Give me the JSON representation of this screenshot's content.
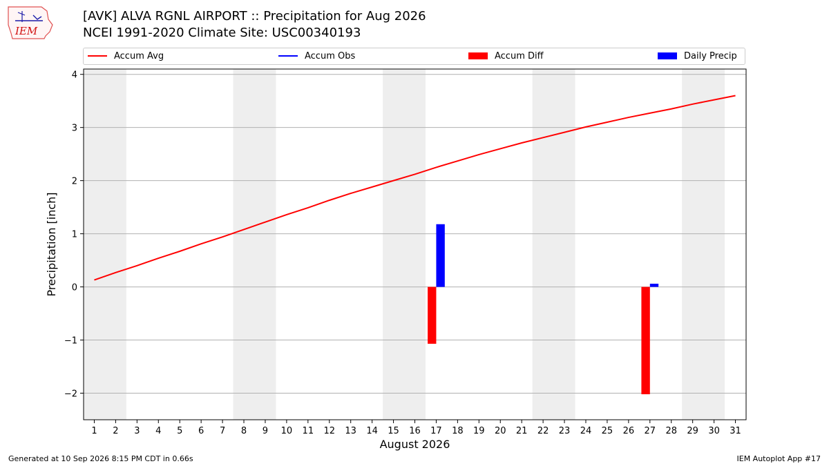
{
  "header": {
    "logo_text": "IEM",
    "title_line1": "[AVK] ALVA RGNL AIRPORT :: Precipitation for Aug 2026",
    "title_line2": "NCEI 1991-2020 Climate Site: USC00340193"
  },
  "legend": {
    "items": [
      {
        "label": "Accum Avg",
        "color": "#ff0000",
        "kind": "line"
      },
      {
        "label": "Accum Obs",
        "color": "#0000ff",
        "kind": "line"
      },
      {
        "label": "Accum Diff",
        "color": "#ff0000",
        "kind": "box"
      },
      {
        "label": "Daily Precip",
        "color": "#0000ff",
        "kind": "box"
      }
    ]
  },
  "footer": {
    "left": "Generated at 10 Sep 2026 8:15 PM CDT in 0.66s",
    "right": "IEM Autoplot App #17"
  },
  "chart_data": {
    "type": "bar",
    "xlabel": "August 2026",
    "ylabel": "Precipitation [inch]",
    "x_ticks": [
      1,
      2,
      3,
      4,
      5,
      6,
      7,
      8,
      9,
      10,
      11,
      12,
      13,
      14,
      15,
      16,
      17,
      18,
      19,
      20,
      21,
      22,
      23,
      24,
      25,
      26,
      27,
      28,
      29,
      30,
      31
    ],
    "xlim": [
      0.5,
      31.5
    ],
    "ylim": [
      -2.5,
      4.1
    ],
    "y_ticks": [
      -2,
      -1,
      0,
      1,
      2,
      3,
      4
    ],
    "y_tick_labels": [
      "−2",
      "−1",
      "0",
      "1",
      "2",
      "3",
      "4"
    ],
    "grid": "horizontal",
    "weekend_shading": [
      [
        0.5,
        2.5
      ],
      [
        7.5,
        9.5
      ],
      [
        14.5,
        16.5
      ],
      [
        21.5,
        23.5
      ],
      [
        28.5,
        30.5
      ]
    ],
    "series": [
      {
        "name": "Accum Avg",
        "type": "line",
        "color": "#ff0000",
        "x": [
          1,
          2,
          3,
          4,
          5,
          6,
          7,
          8,
          9,
          10,
          11,
          12,
          13,
          14,
          15,
          16,
          17,
          18,
          19,
          20,
          21,
          22,
          23,
          24,
          25,
          26,
          27,
          28,
          29,
          30,
          31
        ],
        "values": [
          0.13,
          0.27,
          0.4,
          0.54,
          0.67,
          0.81,
          0.94,
          1.08,
          1.22,
          1.36,
          1.49,
          1.63,
          1.76,
          1.88,
          2.0,
          2.12,
          2.25,
          2.37,
          2.49,
          2.6,
          2.71,
          2.81,
          2.91,
          3.01,
          3.1,
          3.19,
          3.27,
          3.35,
          3.44,
          3.52,
          3.6
        ]
      },
      {
        "name": "Accum Diff",
        "type": "bar",
        "color": "#ff0000",
        "x": [
          17,
          27
        ],
        "values": [
          -1.07,
          -2.02
        ]
      },
      {
        "name": "Daily Precip",
        "type": "bar",
        "color": "#0000ff",
        "x": [
          17,
          27
        ],
        "values": [
          1.18,
          0.06
        ]
      }
    ]
  }
}
